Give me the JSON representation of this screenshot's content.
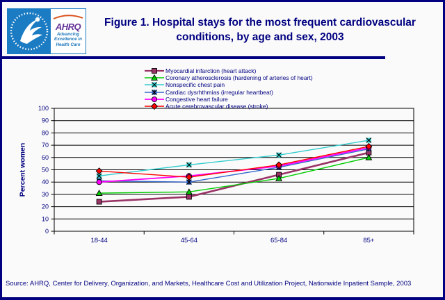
{
  "header": {
    "title": "Figure 1. Hospital stays for the most frequent cardiovascular conditions, by age and sex, 2003",
    "logo": {
      "agency": "AHRQ",
      "tagline": "Advancing Excellence in Health Care"
    }
  },
  "chart_data": {
    "type": "line",
    "title": "",
    "categories": [
      "18-44",
      "45-64",
      "65-84",
      "85+"
    ],
    "series": [
      {
        "name": "Myocardial infarction (heart attack)",
        "values": [
          24,
          28,
          46,
          64
        ],
        "color": "#993366",
        "marker": "square",
        "line_width": 2.6
      },
      {
        "name": "Coronary atherosclerosis (hardening of arteries of heart)",
        "values": [
          31,
          32,
          43,
          60
        ],
        "color": "#00CC00",
        "marker": "triangle",
        "line_width": 1.4
      },
      {
        "name": "Nonspecific chest pain",
        "values": [
          45,
          54,
          62,
          74
        ],
        "color": "#33CCCC",
        "marker": "x",
        "line_width": 1.4
      },
      {
        "name": "Cardiac dysrhthmias (irregular heartbeat)",
        "values": [
          41,
          40,
          52,
          67
        ],
        "color": "#3366CC",
        "marker": "star",
        "line_width": 1.4
      },
      {
        "name": "Congestive heart failure",
        "values": [
          40,
          45,
          53,
          68
        ],
        "color": "#FF00FF",
        "marker": "circle",
        "line_width": 1.8
      },
      {
        "name": "Acute cerebrovascular disease (stroke)",
        "values": [
          49,
          44,
          54,
          69
        ],
        "color": "#FF0000",
        "marker": "diamond",
        "line_width": 1.4
      }
    ],
    "xlabel": "",
    "ylabel": "Percent women",
    "ylim": [
      0,
      100
    ],
    "ytick_step": 10,
    "grid": true,
    "legend_position": "top-center"
  },
  "source": "Source: AHRQ, Center for Delivery, Organization, and Markets, Healthcare Cost and Utilization Project, Nationwide Inpatient Sample, 2003",
  "colors": {
    "accent_navy": "#000080",
    "hhs_blue": "#1B7BC3",
    "ahrq_purple": "#663399",
    "tagline_blue": "#1B75BB",
    "swoosh_orange": "#D9531E",
    "gridline": "#000000"
  }
}
